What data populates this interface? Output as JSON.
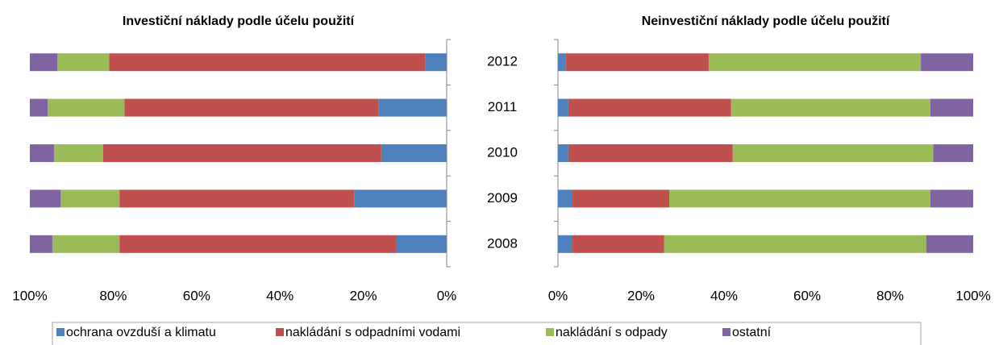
{
  "chart_data": [
    {
      "type": "stacked_barh",
      "title": "Investiční náklady podle účelu použití",
      "xlim": [
        100,
        0
      ],
      "xticks": [
        {
          "value": 100,
          "label": "100%"
        },
        {
          "value": 80,
          "label": "80%"
        },
        {
          "value": 60,
          "label": "60%"
        },
        {
          "value": 40,
          "label": "40%"
        },
        {
          "value": 20,
          "label": "20%"
        },
        {
          "value": 0,
          "label": "0%"
        }
      ],
      "series": [
        {
          "name": "ochrana ovzduší a klimatu",
          "color": "#4f81bd",
          "values": [
            5.2,
            16.4,
            15.7,
            22.2,
            12.0
          ]
        },
        {
          "name": "nakládání s odpadními vodami",
          "color": "#c0504d",
          "values": [
            75.8,
            60.9,
            66.7,
            56.3,
            66.5
          ]
        },
        {
          "name": "nakládání s odpady",
          "color": "#9bbb59",
          "values": [
            12.4,
            18.4,
            11.8,
            14.1,
            16.1
          ]
        },
        {
          "name": "ostatní",
          "color": "#8064a2",
          "values": [
            6.6,
            4.3,
            5.8,
            7.4,
            5.4
          ]
        }
      ]
    },
    {
      "type": "stacked_barh",
      "title": "Neinvestiční náklady podle účelu použití",
      "categories": [
        "2012",
        "2011",
        "2010",
        "2009",
        "2008"
      ],
      "xlim": [
        0,
        100
      ],
      "xticks": [
        {
          "value": 0,
          "label": "0%"
        },
        {
          "value": 20,
          "label": "20%"
        },
        {
          "value": 40,
          "label": "40%"
        },
        {
          "value": 60,
          "label": "60%"
        },
        {
          "value": 80,
          "label": "80%"
        },
        {
          "value": 100,
          "label": "100%"
        }
      ],
      "series": [
        {
          "color": "#4f81bd",
          "values": [
            1.9,
            2.5,
            2.5,
            3.5,
            3.5
          ]
        },
        {
          "color": "#c0504d",
          "values": [
            34.4,
            39.2,
            39.6,
            23.3,
            22.1
          ]
        },
        {
          "color": "#9bbb59",
          "values": [
            51.1,
            48.0,
            48.3,
            62.9,
            63.1
          ]
        },
        {
          "color": "#8064a2",
          "values": [
            12.6,
            10.3,
            9.6,
            10.3,
            11.3
          ]
        }
      ]
    }
  ]
}
